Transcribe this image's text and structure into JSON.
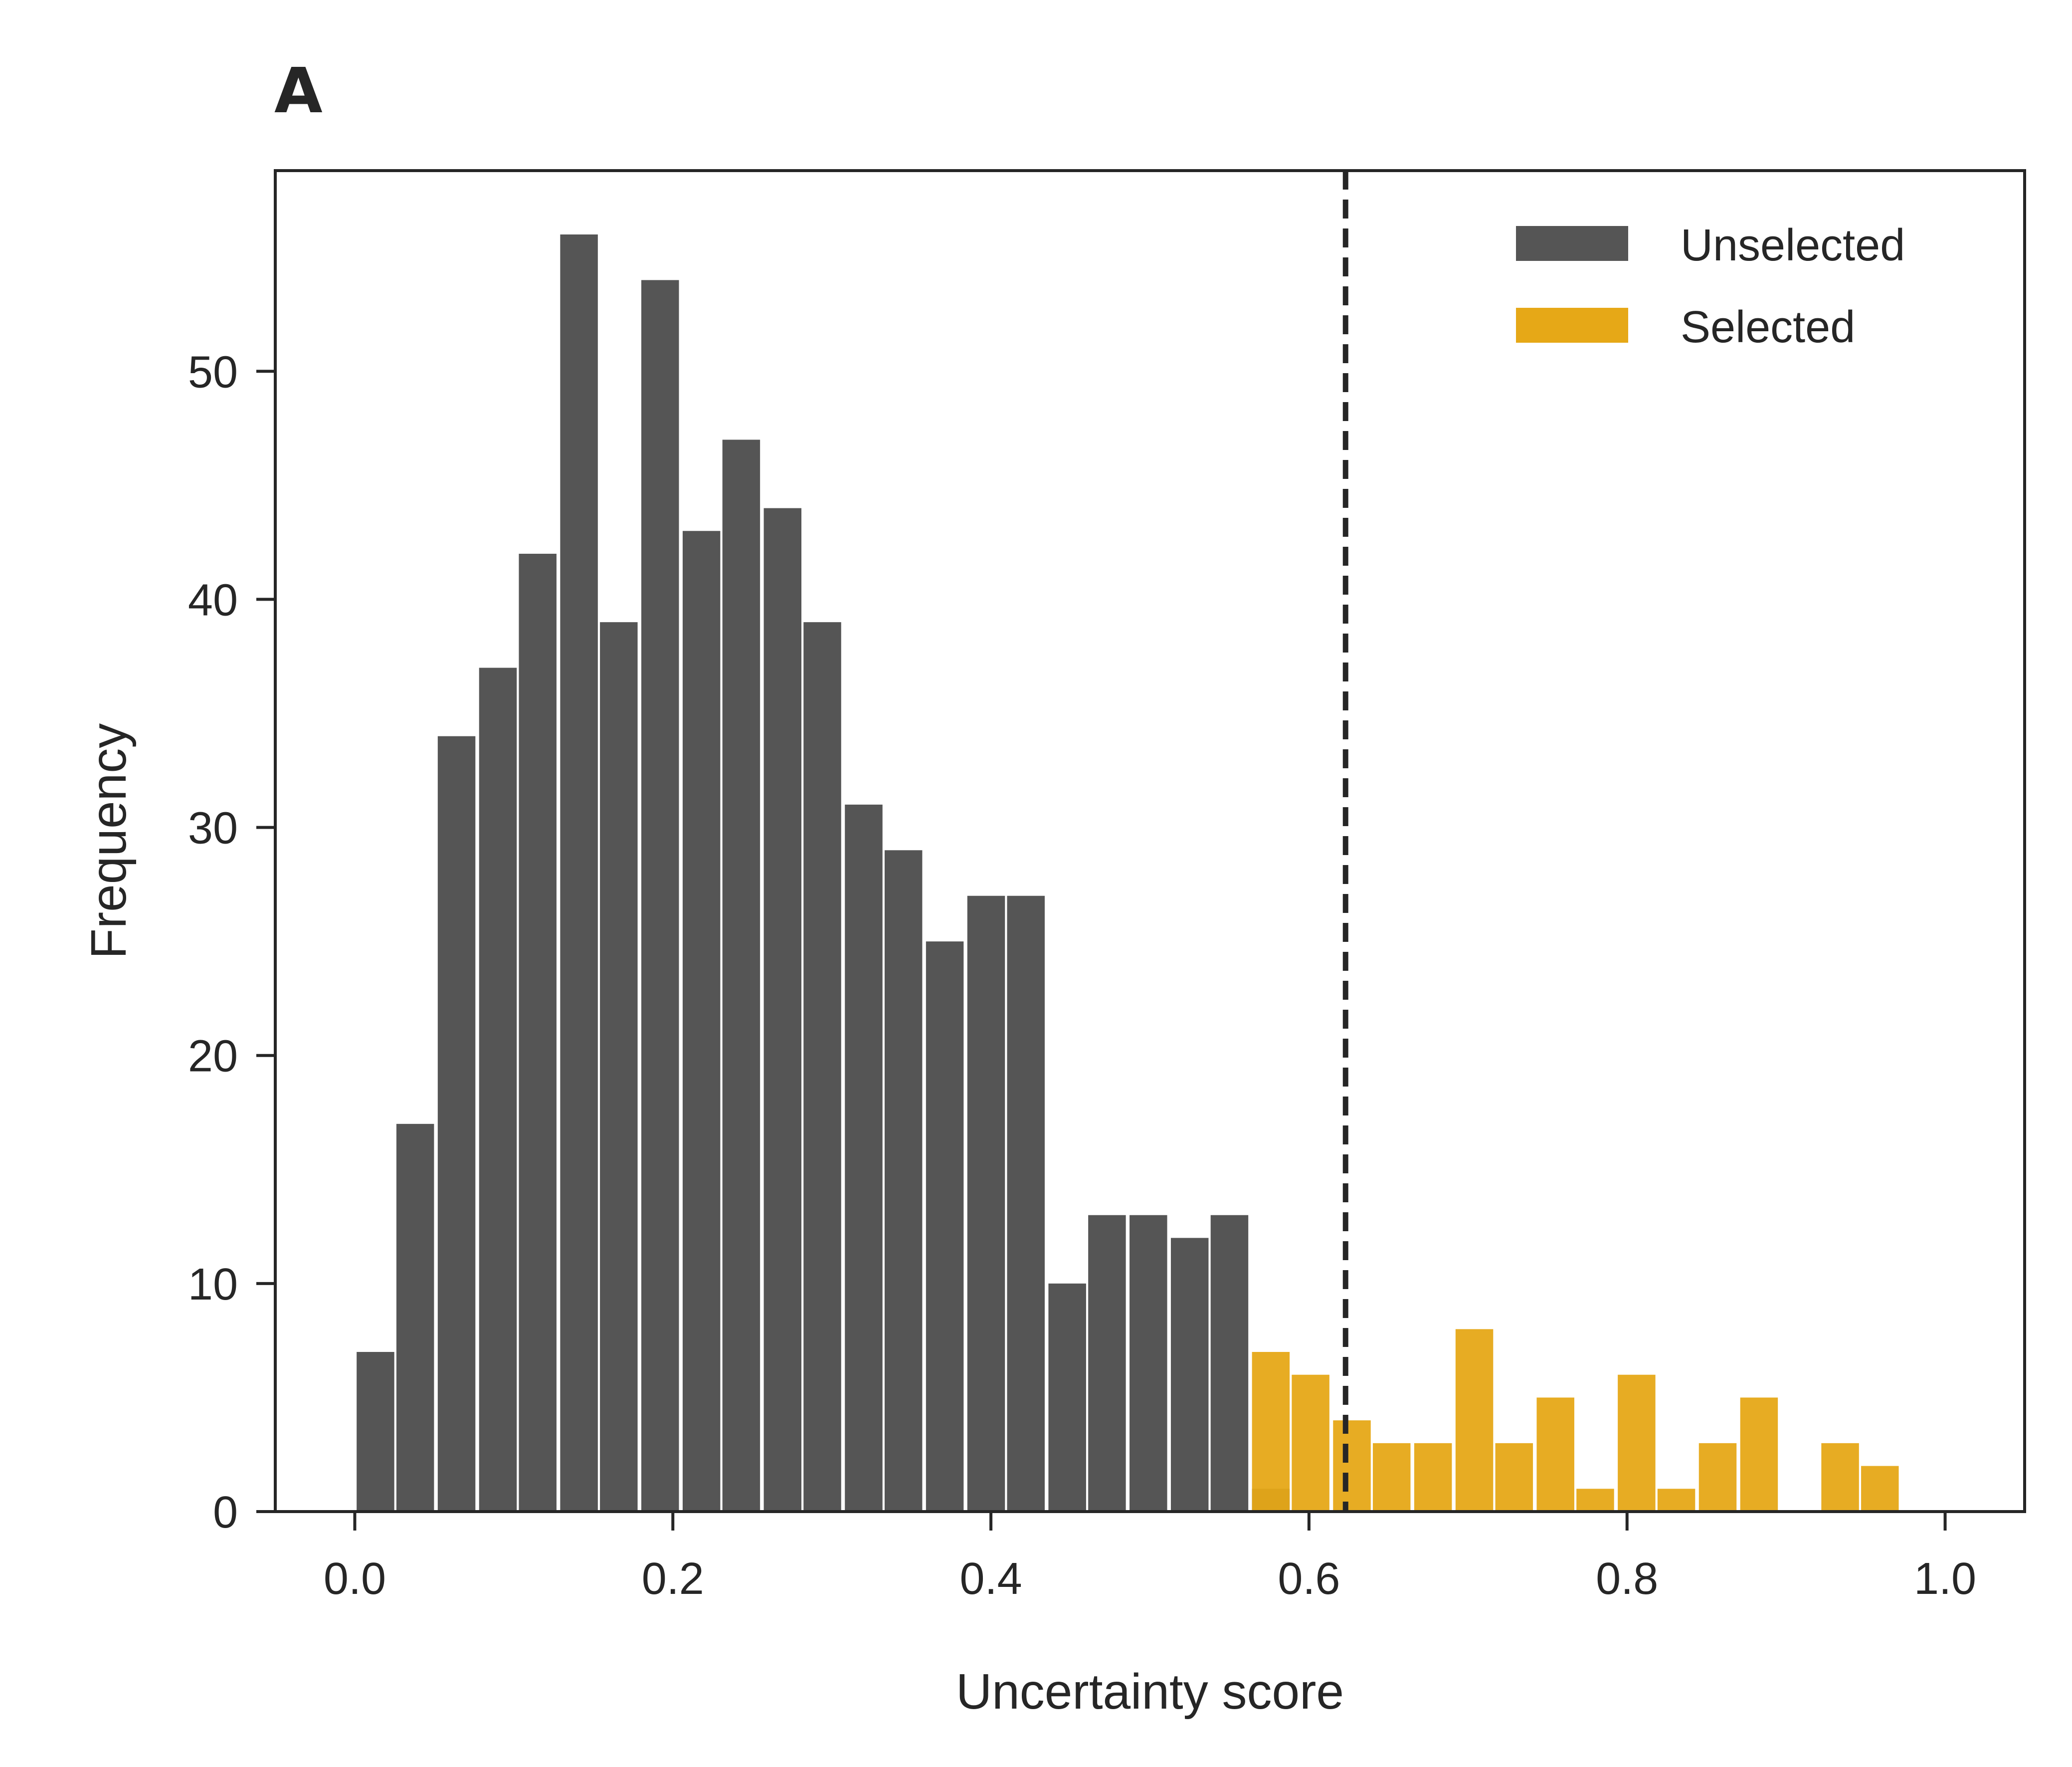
{
  "panel_label": "A",
  "chart_data": {
    "type": "bar",
    "xlabel": "Uncertainty score",
    "ylabel": "Frequency",
    "xlim": [
      -0.05,
      1.05
    ],
    "ylim": [
      0,
      58.8
    ],
    "x_ticks": [
      0.0,
      0.2,
      0.4,
      0.6,
      0.8,
      1.0
    ],
    "x_tick_labels": [
      "0.0",
      "0.2",
      "0.4",
      "0.6",
      "0.8",
      "1.0"
    ],
    "y_ticks": [
      0,
      10,
      20,
      30,
      40,
      50
    ],
    "y_tick_labels": [
      "0",
      "10",
      "20",
      "30",
      "40",
      "50"
    ],
    "grid": false,
    "legend_position": "top-right",
    "threshold": 0.623,
    "series": [
      {
        "name": "Unselected",
        "color": "#555555",
        "bin_centers": [
          0.013,
          0.038,
          0.064,
          0.09,
          0.115,
          0.141,
          0.166,
          0.192,
          0.218,
          0.243,
          0.269,
          0.294,
          0.32,
          0.345,
          0.371,
          0.397,
          0.422,
          0.448,
          0.473,
          0.499,
          0.525,
          0.55,
          0.576
        ],
        "values": [
          7,
          17,
          34,
          37,
          42,
          56,
          39,
          54,
          43,
          47,
          44,
          39,
          31,
          29,
          25,
          27,
          27,
          10,
          13,
          13,
          12,
          13,
          1
        ]
      },
      {
        "name": "Selected",
        "color": "#E6A817",
        "bin_centers": [
          0.576,
          0.601,
          0.627,
          0.652,
          0.678,
          0.704,
          0.729,
          0.755,
          0.78,
          0.806,
          0.831,
          0.857,
          0.883,
          0.908,
          0.934,
          0.959
        ],
        "values": [
          7,
          6,
          4,
          3,
          3,
          8,
          3,
          5,
          1,
          6,
          1,
          3,
          5,
          0,
          3,
          2
        ]
      }
    ]
  }
}
